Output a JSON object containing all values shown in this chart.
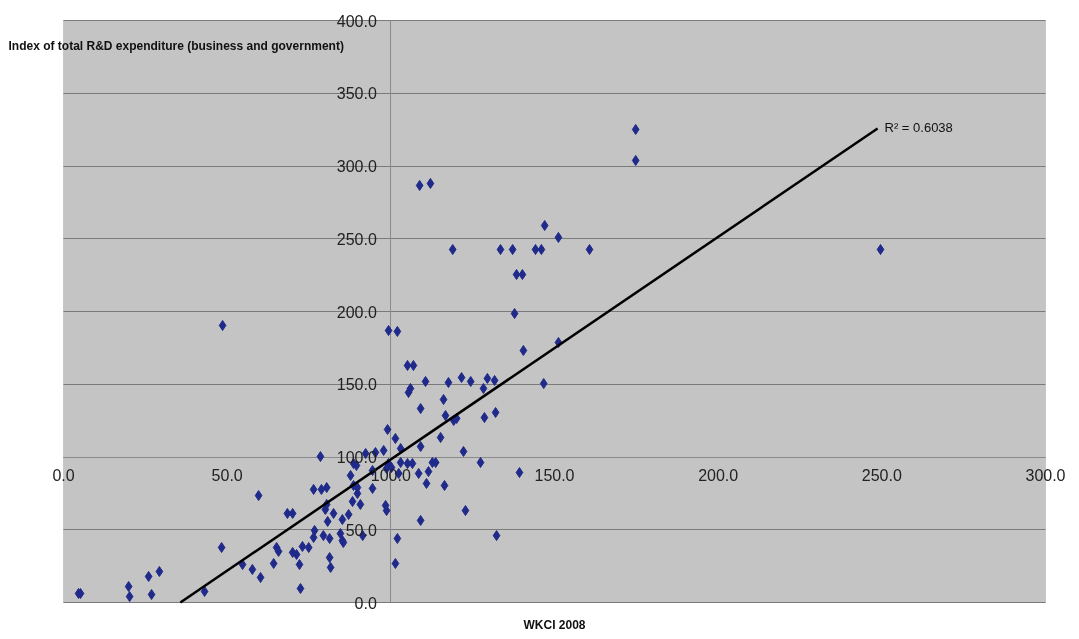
{
  "chart_data": {
    "type": "scatter",
    "xlabel": "WKCI 2008",
    "ylabel": "Index of total R&D expenditure (business and government)",
    "xlim": [
      0,
      300
    ],
    "ylim": [
      0,
      400
    ],
    "xticks": [
      {
        "value": 0,
        "label": "0.0"
      },
      {
        "value": 50,
        "label": "50.0"
      },
      {
        "value": 100,
        "label": "100.0"
      },
      {
        "value": 150,
        "label": "150.0"
      },
      {
        "value": 200,
        "label": "200.0"
      },
      {
        "value": 250,
        "label": "250.0"
      },
      {
        "value": 300,
        "label": "300.0"
      }
    ],
    "yticks": [
      {
        "value": 0,
        "label": "0.0"
      },
      {
        "value": 50,
        "label": "50.0"
      },
      {
        "value": 100,
        "label": "100.0"
      },
      {
        "value": 150,
        "label": "150.0"
      },
      {
        "value": 200,
        "label": "200.0"
      },
      {
        "value": 250,
        "label": "250.0"
      },
      {
        "value": 300,
        "label": "300.0"
      },
      {
        "value": 350,
        "label": "350.0"
      },
      {
        "value": 400,
        "label": "400.0"
      }
    ],
    "grid": "y",
    "marker": "diamond",
    "annotations": [
      {
        "text": "R² = 0.6038",
        "x": 249.6,
        "y": 327
      }
    ],
    "series": [
      {
        "color": "#1f2a8a",
        "x": [
          4.6,
          5.2,
          19.9,
          20.2,
          26.0,
          26.9,
          29.3,
          43.1,
          48.3,
          54.7,
          57.7,
          59.6,
          60.2,
          64.2,
          65.1,
          65.7,
          68.4,
          70.0,
          70.0,
          71.2,
          72.1,
          72.4,
          73.0,
          74.9,
          76.4,
          78.5,
          78.8,
          80.4,
          80.0,
          80.7,
          81.3,
          81.6,
          82.5,
          76.7,
          76.4,
          79.4,
          81.3,
          99.3,
          102.0,
          105.1,
          106.9,
          110.6,
          117.6,
          121.6,
          124.4,
          129.5,
          131.7,
          128.3,
          146.7,
          140.5,
          151.2,
          105.4,
          106.0,
          109.1,
          116.1,
          116.7,
          119.2,
          120.1,
          128.6,
          132.0,
          99.0,
          101.4,
          115.2,
          109.1,
          122.2,
          127.4,
          139.3,
          103.0,
          97.8,
          92.3,
          95.3,
          99.3,
          100.2,
          103.0,
          98.7,
          102.4,
          105.1,
          106.6,
          112.7,
          113.7,
          111.5,
          108.5,
          110.9,
          116.4,
          88.6,
          89.5,
          94.4,
          87.7,
          88.6,
          89.8,
          94.4,
          89.8,
          88.3,
          90.7,
          80.4,
          98.4,
          98.7,
          87.1,
          85.2,
          109.1,
          122.8,
          84.6,
          85.2,
          91.4,
          102.0,
          132.3,
          85.5,
          101.4,
          48.6,
          108.8,
          112.1,
          118.9,
          133.5,
          137.2,
          144.2,
          146.0,
          147.0,
          151.2,
          160.7,
          138.4,
          140.2,
          137.8,
          174.8,
          174.8,
          249.6
        ],
        "values": [
          6.2,
          6.2,
          11,
          4.1,
          17.9,
          5.5,
          21.3,
          7.6,
          37.8,
          26.1,
          22.7,
          73.5,
          17.2,
          26.8,
          37.8,
          35.1,
          61.2,
          61.2,
          34.4,
          33.0,
          26.1,
          9.6,
          38.5,
          37.8,
          77.7,
          100.3,
          77.7,
          79.0,
          63.9,
          55.7,
          30.9,
          24.1,
          61.2,
          49.5,
          44.7,
          46.0,
          44.0,
          186.9,
          186.3,
          162.9,
          162.9,
          151.9,
          151.2,
          154.6,
          151.9,
          154.0,
          152.6,
          147.1,
          150.5,
          173.2,
          178.7,
          144.3,
          147.1,
          133.3,
          139.5,
          128.5,
          125.1,
          126.5,
          127.1,
          130.6,
          118.9,
          112.7,
          113.4,
          107.2,
          103.8,
          96.2,
          89.3,
          105.8,
          104.5,
          102.4,
          103.1,
          95.5,
          92.8,
          96.2,
          92.1,
          88.7,
          95.5,
          95.5,
          96.2,
          96.2,
          90.0,
          88.7,
          81.8,
          80.4,
          95.5,
          94.2,
          90.7,
          87.3,
          80.4,
          79.0,
          78.4,
          74.9,
          69.4,
          67.4,
          67.4,
          66.7,
          63.2,
          60.5,
          57.0,
          56.4,
          63.2,
          47.4,
          42.6,
          46.0,
          44.0,
          46.0,
          41.2,
          26.8,
          190.4,
          286.6,
          288.0,
          242.6,
          242.6,
          242.6,
          242.6,
          242.6,
          259.1,
          250.9,
          242.6,
          225.4,
          225.4,
          198.6,
          303.8,
          325.1,
          242.6
        ]
      },
      {
        "type": "line",
        "marker": "none",
        "color": "#000000",
        "x": [
          35.7,
          248.7
        ],
        "values": [
          0,
          325.8
        ]
      }
    ]
  }
}
